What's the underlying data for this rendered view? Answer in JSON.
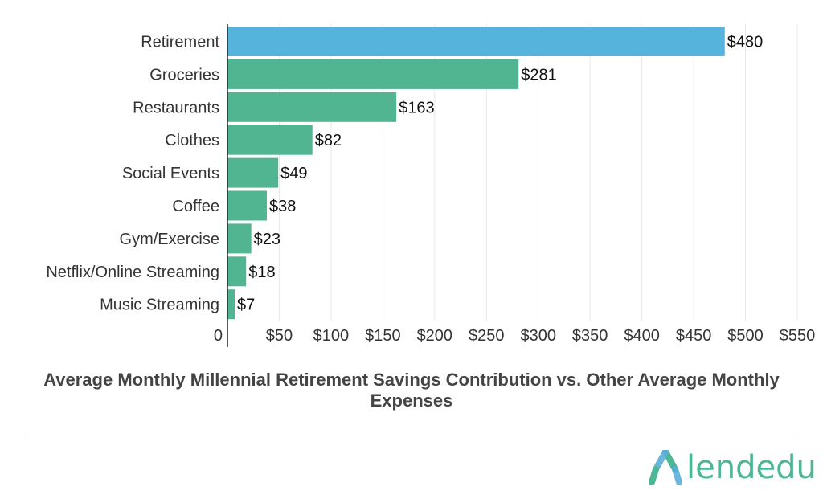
{
  "chart_data": {
    "type": "bar",
    "orientation": "horizontal",
    "title": "Average Monthly Millennial Retirement Savings Contribution vs. Other Average Monthly Expenses",
    "categories": [
      "Retirement",
      "Groceries",
      "Restaurants",
      "Clothes",
      "Social Events",
      "Coffee",
      "Gym/Exercise",
      "Netflix/Online Streaming",
      "Music Streaming"
    ],
    "values": [
      480,
      281,
      163,
      82,
      49,
      38,
      23,
      18,
      7
    ],
    "data_labels": [
      "$480",
      "$281",
      "$163",
      "$82",
      "$49",
      "$38",
      "$23",
      "$18",
      "$7"
    ],
    "bar_colors": [
      "#56b3dc",
      "#52b592",
      "#52b592",
      "#52b592",
      "#52b592",
      "#52b592",
      "#52b592",
      "#52b592",
      "#52b592"
    ],
    "xticks": [
      0,
      50,
      100,
      150,
      200,
      250,
      300,
      350,
      400,
      450,
      500,
      550
    ],
    "xtick_labels": [
      "0",
      "$50",
      "$100",
      "$150",
      "$200",
      "$250",
      "$300",
      "$350",
      "$400",
      "$450",
      "$500",
      "$550"
    ],
    "xlim": [
      0,
      550
    ],
    "xlabel": "",
    "ylabel": "",
    "grid": true
  },
  "brand": {
    "logo_text": "lendedu",
    "logo_color": "#4eb595"
  }
}
